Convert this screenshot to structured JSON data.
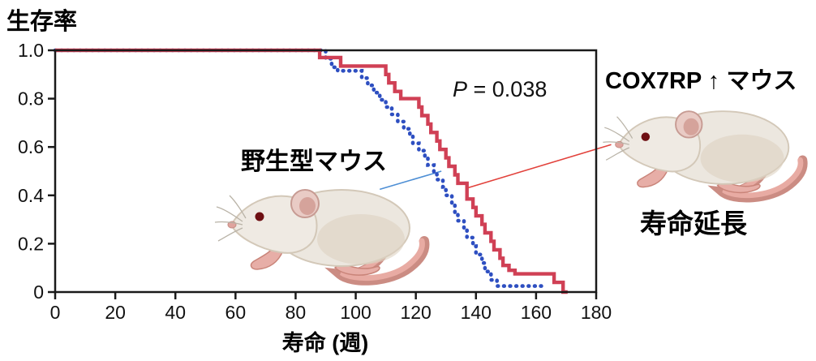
{
  "labels": {
    "wild_type": "野生型マウス",
    "cox7rp": "COX7RP ↑ マウス",
    "lifespan_extension": "寿命延長"
  },
  "chart_data": {
    "type": "line",
    "subtype": "kaplan-meier-step-survival",
    "title": "",
    "xlabel": "寿命 (週)",
    "ylabel": "生存率",
    "xlim": [
      0,
      180
    ],
    "ylim": [
      0,
      1.0
    ],
    "x_ticks": [
      0,
      20,
      40,
      60,
      80,
      100,
      120,
      140,
      160,
      180
    ],
    "y_tick_values": [
      0,
      0.2,
      0.4,
      0.6,
      0.8,
      1.0
    ],
    "y_tick_labels": [
      "0",
      "0.2",
      "0.4",
      "0.6",
      "0.8",
      "1.0"
    ],
    "grid": false,
    "frame": true,
    "legend_position": "none (labels with leader lines)",
    "axis_color": "#1a1a1a",
    "series": [
      {
        "name": "野生型マウス",
        "id": "wild-type-curve",
        "color": "#2e4fc1",
        "line_style": "dotted",
        "points": [
          [
            0,
            1
          ],
          [
            90,
            1
          ],
          [
            90,
            0.965
          ],
          [
            92,
            0.965
          ],
          [
            92,
            0.93
          ],
          [
            94,
            0.93
          ],
          [
            94,
            0.915
          ],
          [
            102,
            0.915
          ],
          [
            102,
            0.885
          ],
          [
            104,
            0.885
          ],
          [
            104,
            0.855
          ],
          [
            106,
            0.855
          ],
          [
            106,
            0.825
          ],
          [
            108,
            0.825
          ],
          [
            108,
            0.795
          ],
          [
            110,
            0.795
          ],
          [
            110,
            0.765
          ],
          [
            112,
            0.765
          ],
          [
            112,
            0.735
          ],
          [
            114,
            0.735
          ],
          [
            114,
            0.705
          ],
          [
            116,
            0.705
          ],
          [
            116,
            0.675
          ],
          [
            118,
            0.675
          ],
          [
            118,
            0.645
          ],
          [
            119,
            0.645
          ],
          [
            119,
            0.615
          ],
          [
            121,
            0.615
          ],
          [
            121,
            0.585
          ],
          [
            123,
            0.585
          ],
          [
            123,
            0.555
          ],
          [
            124,
            0.555
          ],
          [
            124,
            0.525
          ],
          [
            126,
            0.525
          ],
          [
            126,
            0.495
          ],
          [
            127,
            0.495
          ],
          [
            127,
            0.465
          ],
          [
            129,
            0.465
          ],
          [
            129,
            0.435
          ],
          [
            130,
            0.435
          ],
          [
            130,
            0.4
          ],
          [
            132,
            0.4
          ],
          [
            132,
            0.365
          ],
          [
            133,
            0.365
          ],
          [
            133,
            0.33
          ],
          [
            134,
            0.33
          ],
          [
            134,
            0.295
          ],
          [
            136,
            0.295
          ],
          [
            136,
            0.26
          ],
          [
            137,
            0.26
          ],
          [
            137,
            0.225
          ],
          [
            139,
            0.225
          ],
          [
            139,
            0.19
          ],
          [
            140,
            0.19
          ],
          [
            140,
            0.155
          ],
          [
            142,
            0.155
          ],
          [
            142,
            0.12
          ],
          [
            143,
            0.12
          ],
          [
            143,
            0.085
          ],
          [
            145,
            0.085
          ],
          [
            145,
            0.05
          ],
          [
            147,
            0.05
          ],
          [
            147,
            0.025
          ],
          [
            163,
            0.025
          ]
        ]
      },
      {
        "name": "COX7RP ↑ マウス",
        "id": "cox7rp-curve",
        "color": "#d04055",
        "line_style": "solid",
        "points": [
          [
            0,
            1
          ],
          [
            88,
            1
          ],
          [
            88,
            0.97
          ],
          [
            95,
            0.97
          ],
          [
            95,
            0.935
          ],
          [
            110,
            0.935
          ],
          [
            110,
            0.9
          ],
          [
            111,
            0.9
          ],
          [
            111,
            0.865
          ],
          [
            113,
            0.865
          ],
          [
            113,
            0.83
          ],
          [
            115,
            0.83
          ],
          [
            115,
            0.8
          ],
          [
            121,
            0.8
          ],
          [
            121,
            0.765
          ],
          [
            122,
            0.765
          ],
          [
            122,
            0.73
          ],
          [
            124,
            0.73
          ],
          [
            124,
            0.695
          ],
          [
            125,
            0.695
          ],
          [
            125,
            0.66
          ],
          [
            127,
            0.66
          ],
          [
            127,
            0.625
          ],
          [
            128,
            0.625
          ],
          [
            128,
            0.59
          ],
          [
            130,
            0.59
          ],
          [
            130,
            0.555
          ],
          [
            131,
            0.555
          ],
          [
            131,
            0.52
          ],
          [
            133,
            0.52
          ],
          [
            133,
            0.485
          ],
          [
            134,
            0.485
          ],
          [
            134,
            0.45
          ],
          [
            137,
            0.45
          ],
          [
            137,
            0.385
          ],
          [
            139,
            0.385
          ],
          [
            139,
            0.35
          ],
          [
            140,
            0.35
          ],
          [
            140,
            0.315
          ],
          [
            142,
            0.315
          ],
          [
            142,
            0.28
          ],
          [
            143,
            0.28
          ],
          [
            143,
            0.245
          ],
          [
            145,
            0.245
          ],
          [
            145,
            0.21
          ],
          [
            146,
            0.21
          ],
          [
            146,
            0.175
          ],
          [
            148,
            0.175
          ],
          [
            148,
            0.14
          ],
          [
            149,
            0.14
          ],
          [
            149,
            0.11
          ],
          [
            151,
            0.11
          ],
          [
            151,
            0.09
          ],
          [
            153,
            0.09
          ],
          [
            153,
            0.075
          ],
          [
            166,
            0.075
          ],
          [
            166,
            0.04
          ],
          [
            169,
            0.04
          ],
          [
            169,
            0
          ],
          [
            170.5,
            0
          ]
        ]
      }
    ],
    "annotations": {
      "p_value": {
        "symbol": "P",
        "text": " = 0.038"
      },
      "leader_lines": [
        {
          "name": "wild-type-leader-line",
          "series": "野生型マウス",
          "color": "#4e8fd5",
          "from": [
            108,
            0.425
          ],
          "to": [
            128.5,
            0.5
          ]
        },
        {
          "name": "cox7rp-leader-line",
          "series": "COX7RP ↑ マウス",
          "color": "#e2413b",
          "from": [
            137,
            0.43
          ],
          "to": [
            185,
            0.61
          ]
        }
      ]
    }
  }
}
